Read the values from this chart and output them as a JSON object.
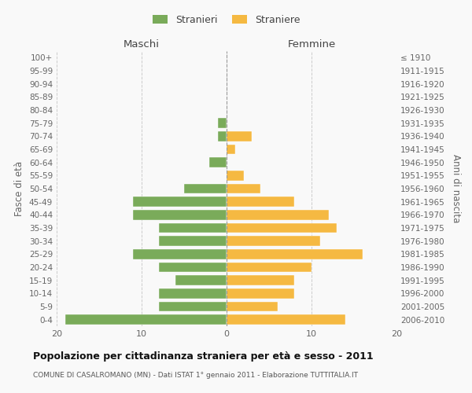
{
  "age_groups": [
    "0-4",
    "5-9",
    "10-14",
    "15-19",
    "20-24",
    "25-29",
    "30-34",
    "35-39",
    "40-44",
    "45-49",
    "50-54",
    "55-59",
    "60-64",
    "65-69",
    "70-74",
    "75-79",
    "80-84",
    "85-89",
    "90-94",
    "95-99",
    "100+"
  ],
  "birth_years": [
    "2006-2010",
    "2001-2005",
    "1996-2000",
    "1991-1995",
    "1986-1990",
    "1981-1985",
    "1976-1980",
    "1971-1975",
    "1966-1970",
    "1961-1965",
    "1956-1960",
    "1951-1955",
    "1946-1950",
    "1941-1945",
    "1936-1940",
    "1931-1935",
    "1926-1930",
    "1921-1925",
    "1916-1920",
    "1911-1915",
    "≤ 1910"
  ],
  "males": [
    19,
    8,
    8,
    6,
    8,
    11,
    8,
    8,
    11,
    11,
    5,
    0,
    2,
    0,
    1,
    1,
    0,
    0,
    0,
    0,
    0
  ],
  "females": [
    14,
    6,
    8,
    8,
    10,
    16,
    11,
    13,
    12,
    8,
    4,
    2,
    0,
    1,
    3,
    0,
    0,
    0,
    0,
    0,
    0
  ],
  "male_color": "#7aab5a",
  "female_color": "#f5b942",
  "background_color": "#f9f9f9",
  "grid_color": "#cccccc",
  "title": "Popolazione per cittadinanza straniera per età e sesso - 2011",
  "subtitle": "COMUNE DI CASALROMANO (MN) - Dati ISTAT 1° gennaio 2011 - Elaborazione TUTTITALIA.IT",
  "xlabel_left": "Maschi",
  "xlabel_right": "Femmine",
  "ylabel_left": "Fasce di età",
  "ylabel_right": "Anni di nascita",
  "legend_stranieri": "Stranieri",
  "legend_straniere": "Straniere",
  "xlim": 20
}
